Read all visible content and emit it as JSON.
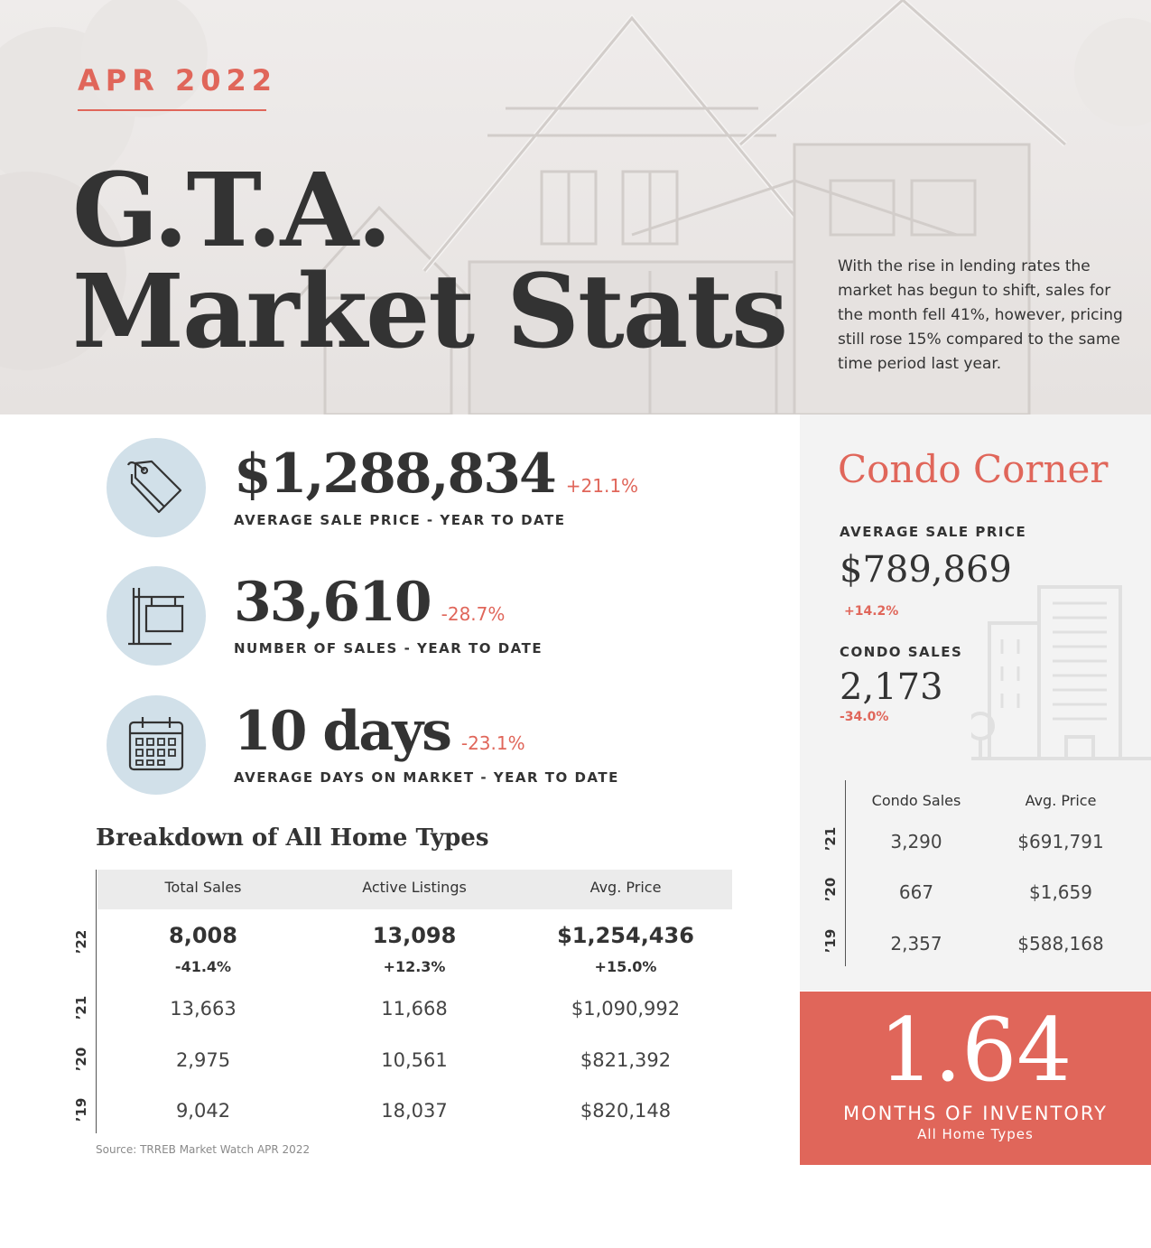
{
  "header": {
    "date": "APR 2022",
    "title_line1": "G.T.A.",
    "title_line2": "Market Stats",
    "intro": "With the rise in lending rates the market has begun to shift, sales for the month fell 41%, however, pricing still rose 15% compared to the same time period last year."
  },
  "stats": {
    "price": {
      "value": "$1,288,834",
      "change": "+21.1%",
      "label": "AVERAGE SALE PRICE - YEAR TO DATE",
      "icon": "price-tag-icon"
    },
    "sales": {
      "value": "33,610",
      "change": "-28.7%",
      "label": "NUMBER OF SALES - YEAR TO DATE",
      "icon": "sign-post-icon"
    },
    "days": {
      "value": "10 days",
      "change": "-23.1%",
      "label": "AVERAGE DAYS ON MARKET - YEAR TO DATE",
      "icon": "calendar-icon"
    }
  },
  "breakdown": {
    "title": "Breakdown of All Home Types",
    "headers": [
      "Total Sales",
      "Active Listings",
      "Avg. Price"
    ],
    "rows": [
      {
        "year": "’22",
        "values": [
          "8,008",
          "13,098",
          "$1,254,436"
        ],
        "changes": [
          "-41.4%",
          "+12.3%",
          "+15.0%"
        ]
      },
      {
        "year": "’21",
        "values": [
          "13,663",
          "11,668",
          "$1,090,992"
        ]
      },
      {
        "year": "’20",
        "values": [
          "2,975",
          "10,561",
          "$821,392"
        ]
      },
      {
        "year": "’19",
        "values": [
          "9,042",
          "18,037",
          "$820,148"
        ]
      }
    ],
    "source": "Source: TRREB Market Watch APR 2022"
  },
  "condo": {
    "title": "Condo Corner",
    "avg_price_label": "AVERAGE SALE PRICE",
    "avg_price_value": "$789,869",
    "avg_price_change": "+14.2%",
    "sales_label": "CONDO SALES",
    "sales_value": "2,173",
    "sales_change": "-34.0%",
    "headers": [
      "Condo Sales",
      "Avg. Price"
    ],
    "rows": [
      {
        "year": "’21",
        "values": [
          "3,290",
          "$691,791"
        ]
      },
      {
        "year": "’20",
        "values": [
          "667",
          "$1,659"
        ]
      },
      {
        "year": "’19",
        "values": [
          "2,357",
          "$588,168"
        ]
      }
    ]
  },
  "inventory": {
    "value": "1.64",
    "label": "MONTHS OF INVENTORY",
    "sublabel": "All Home Types"
  },
  "colors": {
    "accent": "#e0665a",
    "icon_circle": "#d1e0e9",
    "text": "#333333",
    "panel": "#f3f3f3"
  }
}
